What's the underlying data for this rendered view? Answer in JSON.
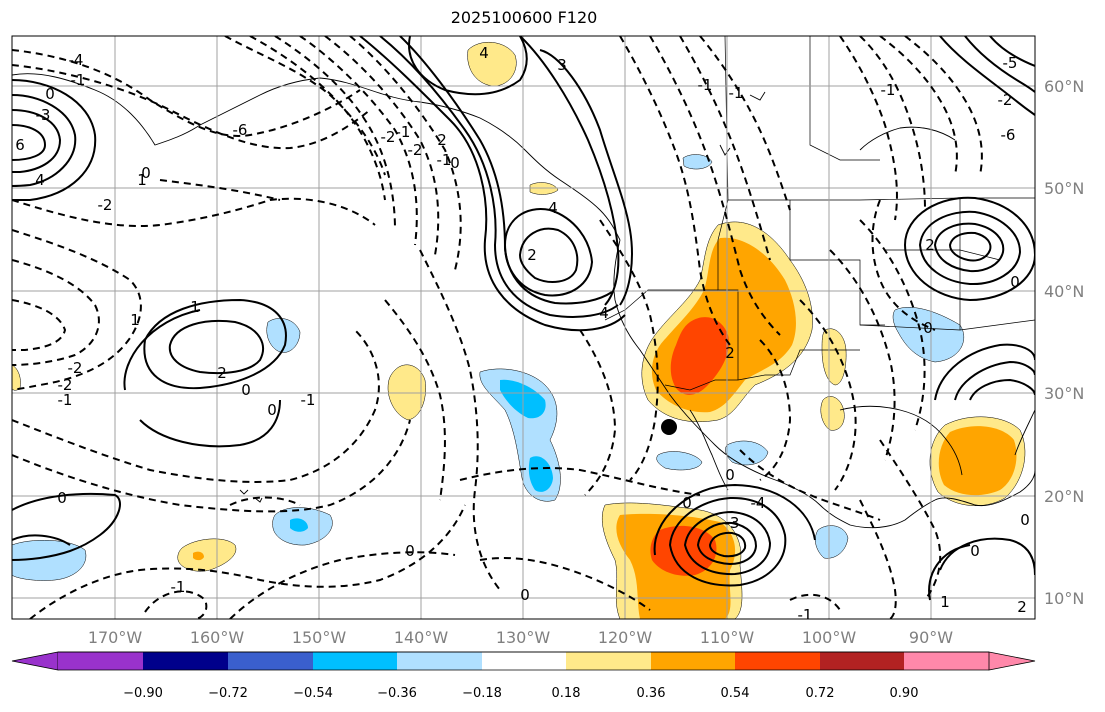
{
  "title": "2025100600 F120",
  "map": {
    "lon_ticks": [
      "170°W",
      "160°W",
      "150°W",
      "140°W",
      "130°W",
      "120°W",
      "110°W",
      "100°W",
      "90°W"
    ],
    "lat_ticks": [
      "60°N",
      "50°N",
      "40°N",
      "30°N",
      "20°N",
      "10°N"
    ],
    "marker": {
      "label": "point marker",
      "color": "#000000"
    }
  },
  "contour_labels": [
    "4",
    "3",
    "0",
    "-1",
    "1",
    "-3",
    "6",
    "4",
    "-4",
    "-2",
    "-1",
    "-1",
    "-2",
    "0",
    "2",
    "4",
    "-6",
    "-2",
    "1",
    "-2",
    "2",
    "0",
    "0",
    "-1",
    "-1",
    "-2",
    "0",
    "1",
    "4",
    "0",
    "-1",
    "2",
    "0",
    "0",
    "-1",
    "0",
    "-3",
    "-4",
    "0",
    "2",
    "0",
    "0",
    "0",
    "-1",
    "-1",
    "1",
    "2",
    "-1",
    "0",
    "2",
    "-5",
    "-6",
    "-2"
  ],
  "colorbar": {
    "ticks": [
      "−0.90",
      "−0.72",
      "−0.54",
      "−0.36",
      "−0.18",
      "0.18",
      "0.36",
      "0.54",
      "0.72",
      "0.90"
    ],
    "colors": [
      "#9932cc",
      "#00008b",
      "#3a5fcd",
      "#00bfff",
      "#b0e0ff",
      "#ffffff",
      "#ffe98a",
      "#ffa500",
      "#ff4500",
      "#b22222",
      "#ff88aa"
    ]
  },
  "shading_colors": {
    "light_blue": "#b0e0ff",
    "blue": "#00bfff",
    "pale_yellow": "#ffe98a",
    "orange": "#ffa500",
    "red_orange": "#ff4500"
  }
}
